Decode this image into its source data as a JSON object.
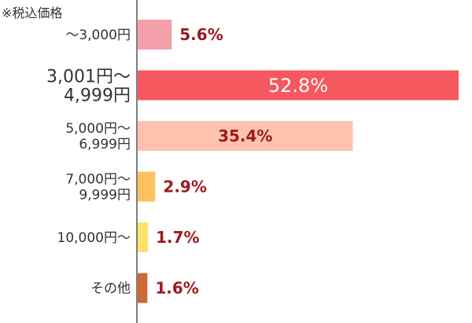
{
  "chart_data": {
    "type": "bar",
    "orientation": "horizontal",
    "note": "※税込価格",
    "categories": [
      [
        "～3,000円"
      ],
      [
        "3,001円～",
        "4,999円"
      ],
      [
        "5,000円～",
        "6,999円"
      ],
      [
        "7,000円～",
        "9,999円"
      ],
      [
        "10,000円～"
      ],
      [
        "その他"
      ]
    ],
    "values": [
      5.6,
      52.8,
      35.4,
      2.9,
      1.7,
      1.6
    ],
    "value_labels": [
      "5.6%",
      "52.8%",
      "35.4%",
      "2.9%",
      "1.7%",
      "1.6%"
    ],
    "colors": [
      "#f4a0aa",
      "#f5585e",
      "#fec3ae",
      "#fcc25f",
      "#fde36c",
      "#cd6a36"
    ],
    "highlight_index": 1,
    "xlim": [
      0,
      55
    ],
    "legend": "none",
    "grid": false
  }
}
